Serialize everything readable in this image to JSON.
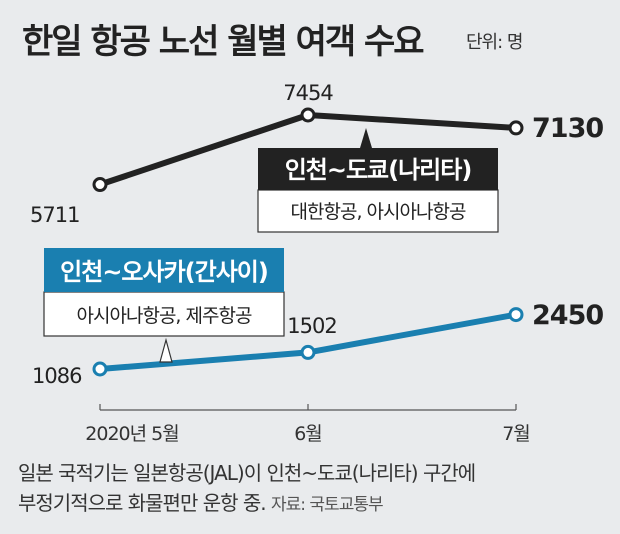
{
  "header": {
    "title": "한일 항공 노선 월별 여객 수요",
    "unit": "단위: 명"
  },
  "notes": {
    "line1": "일본 국적기는 일본항공(JAL)이 인천~도쿄(나리타) 구간에",
    "line2": "부정기적으로 화물편만 운항 중.",
    "source": "자료: 국토교통부"
  },
  "chart_data": {
    "type": "line",
    "categories": [
      "2020년 5월",
      "6월",
      "7월"
    ],
    "series": [
      {
        "name": "인천~도쿄(나리타)",
        "airlines": "대한항공, 아시아나항공",
        "values": [
          5711,
          7454,
          7130
        ],
        "labels": [
          "5711",
          "7454",
          "7130"
        ],
        "color": "#222222"
      },
      {
        "name": "인천~오사카(간사이)",
        "airlines": "아시아나항공, 제주항공",
        "values": [
          1086,
          1502,
          2450
        ],
        "labels": [
          "1086",
          "1502",
          "2450"
        ],
        "color": "#1a7fb0"
      }
    ],
    "title": "한일 항공 노선 월별 여객 수요",
    "unit": "명",
    "grid": false,
    "colors": {
      "tokyo_box": "#222222",
      "osaka_box": "#1a7fb0",
      "background": "#e9ebed"
    }
  }
}
